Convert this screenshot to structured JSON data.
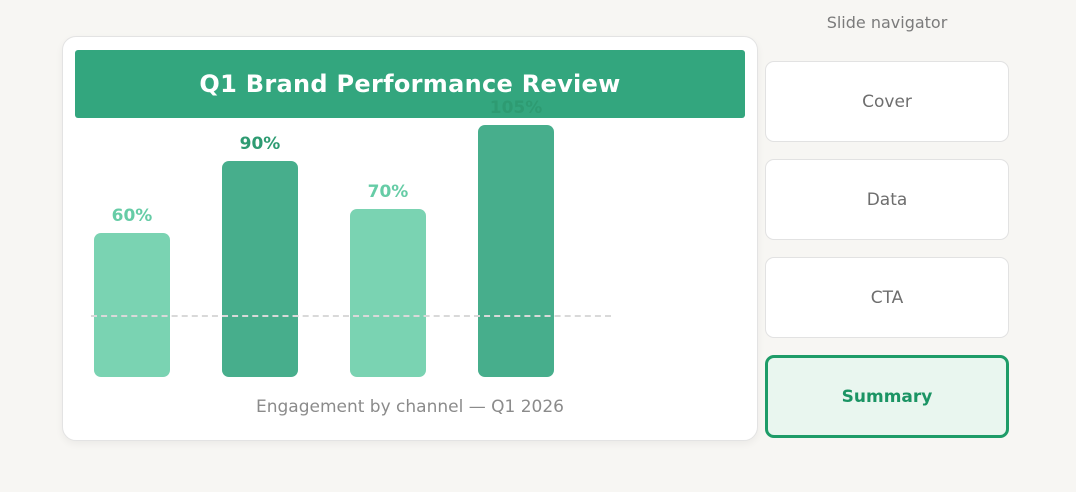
{
  "colors": {
    "page_bg": "#f7f6f3",
    "card_bg": "#ffffff",
    "card_border": "#e3e3e3",
    "header_bg": "#33a67e",
    "header_text": "#ffffff",
    "bar_light": "#7ad3b2",
    "bar_dark": "#47ae8c",
    "label_light": "#66cca6",
    "label_dark": "#2e9b72",
    "dash_line": "#d9d9d9",
    "caption_text": "#8b8b8b",
    "nav_title_text": "#7b7b7b",
    "nav_button_bg": "#ffffff",
    "nav_button_border": "#e2e2e2",
    "nav_button_text": "#6e6e6e",
    "active_border": "#1e9c68",
    "active_bg": "#e9f6ef",
    "active_text": "#1b9464"
  },
  "slide": {
    "title": "Q1 Brand Performance Review",
    "caption": "Engagement by channel — Q1 2026"
  },
  "chart_data": {
    "type": "bar",
    "values": [
      60,
      90,
      70,
      105
    ],
    "labels": [
      "60%",
      "90%",
      "70%",
      "105%"
    ],
    "bar_styles": [
      "light",
      "dark",
      "light",
      "dark"
    ],
    "title": "Q1 Brand Performance Review",
    "xlabel": "Engagement by channel — Q1 2026",
    "ylabel": "",
    "ylim": [
      0,
      105
    ],
    "grid": "off",
    "legend": "none",
    "reference_line": {
      "style": "dashed",
      "approx_value": 26
    }
  },
  "navigator": {
    "title": "Slide navigator",
    "items": [
      {
        "label": "Cover",
        "active": false
      },
      {
        "label": "Data",
        "active": false
      },
      {
        "label": "CTA",
        "active": false
      },
      {
        "label": "Summary",
        "active": true
      }
    ]
  }
}
